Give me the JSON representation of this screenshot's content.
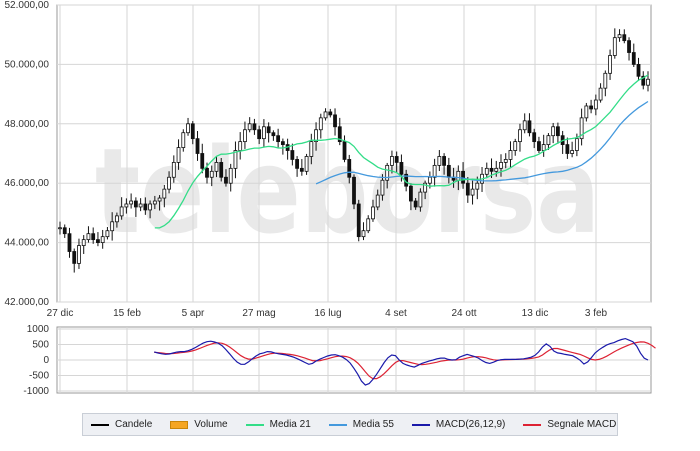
{
  "chart_data": [
    {
      "type": "candlestick",
      "y_ticks": [
        "52.000,00",
        "50.000,00",
        "48.000,00",
        "46.000,00",
        "44.000,00",
        "42.000,00"
      ],
      "ylim": [
        42000,
        52000
      ],
      "x_ticks": [
        "27 dic",
        "15 feb",
        "5 apr",
        "27 mag",
        "16 lug",
        "4 set",
        "24 ott",
        "13 dic",
        "3 feb"
      ],
      "grid": true,
      "close": [
        44500,
        44300,
        43700,
        43300,
        43900,
        44100,
        44300,
        44100,
        44000,
        44200,
        44400,
        44700,
        44900,
        45200,
        45300,
        45400,
        45200,
        45300,
        45100,
        45300,
        45400,
        45500,
        45800,
        46200,
        46700,
        47200,
        47700,
        48000,
        47500,
        47000,
        46500,
        46200,
        46400,
        46700,
        46200,
        46000,
        46500,
        47100,
        47400,
        47800,
        48000,
        47800,
        47500,
        47900,
        47700,
        47600,
        47400,
        47300,
        47100,
        46800,
        46500,
        46400,
        46900,
        47400,
        47800,
        48200,
        48400,
        48300,
        47900,
        47400,
        46800,
        46200,
        45300,
        44200,
        44400,
        44800,
        45200,
        45600,
        46100,
        46600,
        46900,
        46700,
        46300,
        45900,
        45400,
        45200,
        45700,
        46000,
        46200,
        46600,
        46900,
        46600,
        46200,
        46100,
        46400,
        46000,
        45600,
        45800,
        46000,
        46300,
        46500,
        46400,
        46500,
        46700,
        46800,
        47100,
        47400,
        47800,
        48100,
        47700,
        47400,
        47100,
        47300,
        47600,
        47900,
        47600,
        47300,
        47000,
        47100,
        47500,
        48200,
        48600,
        48500,
        48800,
        49200,
        49700,
        50300,
        50900,
        51000,
        50800,
        50400,
        50000,
        49600,
        49300,
        49500
      ],
      "media_21": [
        null,
        null,
        null,
        null,
        null,
        null,
        null,
        null,
        null,
        null,
        null,
        null,
        null,
        null,
        null,
        null,
        null,
        null,
        null,
        null,
        44495,
        44500,
        44571,
        44700,
        44905,
        45148,
        45424,
        45738,
        46014,
        46229,
        46410,
        46571,
        46748,
        46905,
        46976,
        46981,
        47005,
        47048,
        47081,
        47110,
        47152,
        47181,
        47181,
        47214,
        47238,
        47224,
        47185,
        47186,
        47219,
        47271,
        47324,
        47343,
        47386,
        47448,
        47443,
        47443,
        47457,
        47481,
        47505,
        47481,
        47429,
        47367,
        47238,
        47038,
        46867,
        46757,
        46652,
        46538,
        46476,
        46443,
        46410,
        46357,
        46229,
        46033,
        45967,
        45957,
        45957,
        45938,
        45900,
        45910,
        45919,
        45914,
        45929,
        46023,
        46095,
        46114,
        46129,
        46138,
        46129,
        46143,
        46190,
        46271,
        46329,
        46386,
        46433,
        46519,
        46624,
        46719,
        46810,
        46871,
        46914,
        46976,
        47076,
        47162,
        47267,
        47352,
        47433,
        47486,
        47505,
        47533,
        47619,
        47724,
        47805,
        47910,
        48067,
        48224,
        48390,
        48595,
        48800,
        49005,
        49186,
        49338,
        49467,
        49548,
        49648
      ],
      "media_55": [
        null,
        null,
        null,
        null,
        null,
        null,
        null,
        null,
        null,
        null,
        null,
        null,
        null,
        null,
        null,
        null,
        null,
        null,
        null,
        null,
        null,
        null,
        null,
        null,
        null,
        null,
        null,
        null,
        null,
        null,
        null,
        null,
        null,
        null,
        null,
        null,
        null,
        null,
        null,
        null,
        null,
        null,
        null,
        null,
        null,
        null,
        null,
        null,
        null,
        null,
        null,
        null,
        null,
        null,
        45975,
        46047,
        46122,
        46194,
        46255,
        46309,
        46349,
        46369,
        46367,
        46331,
        46290,
        46254,
        46224,
        46204,
        46194,
        46193,
        46209,
        46229,
        46238,
        46243,
        46231,
        46221,
        46223,
        46225,
        46219,
        46226,
        46229,
        46218,
        46207,
        46200,
        46190,
        46168,
        46138,
        46111,
        46094,
        46081,
        46076,
        46076,
        46084,
        46101,
        46112,
        46131,
        46147,
        46164,
        46181,
        46211,
        46249,
        46288,
        46322,
        46351,
        46371,
        46379,
        46399,
        46439,
        46484,
        46536,
        46608,
        46719,
        46841,
        46985,
        47147,
        47325,
        47525,
        47738,
        47950,
        48126,
        48279,
        48418,
        48543,
        48648,
        48752
      ]
    },
    {
      "type": "line",
      "y_ticks": [
        "1000",
        "500",
        "0",
        "-500",
        "-1000"
      ],
      "ylim": [
        -1000,
        1000
      ],
      "grid": true,
      "macd": [
        null,
        null,
        null,
        null,
        null,
        null,
        null,
        null,
        null,
        null,
        null,
        null,
        null,
        null,
        null,
        null,
        null,
        null,
        null,
        null,
        null,
        null,
        null,
        null,
        null,
        260,
        225,
        200,
        185,
        195,
        225,
        255,
        270,
        270,
        300,
        345,
        405,
        480,
        545,
        590,
        605,
        580,
        540,
        460,
        340,
        200,
        50,
        -70,
        -140,
        -140,
        -60,
        40,
        130,
        200,
        230,
        270,
        260,
        230,
        200,
        180,
        160,
        130,
        90,
        40,
        -20,
        -80,
        -140,
        -110,
        -30,
        30,
        80,
        130,
        160,
        170,
        140,
        90,
        10,
        -100,
        -270,
        -460,
        -680,
        -810,
        -760,
        -630,
        -460,
        -270,
        -80,
        70,
        160,
        140,
        0,
        -110,
        -160,
        -200,
        -230,
        -170,
        -110,
        -70,
        -30,
        0,
        40,
        60,
        60,
        20,
        0,
        10,
        90,
        140,
        180,
        150,
        110,
        60,
        -20,
        -80,
        -110,
        -70,
        -20,
        10,
        20,
        20,
        20,
        20,
        30,
        40,
        60,
        90,
        150,
        260,
        420,
        520,
        440,
        290,
        230,
        210,
        180,
        160,
        140,
        70,
        -10,
        -130,
        -60,
        80,
        230,
        330,
        410,
        480,
        530,
        560,
        620,
        660,
        690,
        640,
        590,
        450,
        220,
        60,
        0
      ],
      "signal": [
        null,
        null,
        null,
        null,
        null,
        null,
        null,
        null,
        null,
        null,
        null,
        null,
        null,
        null,
        null,
        null,
        null,
        null,
        null,
        null,
        null,
        null,
        null,
        null,
        null,
        250,
        240,
        225,
        210,
        205,
        210,
        220,
        235,
        250,
        265,
        290,
        325,
        370,
        420,
        470,
        510,
        545,
        555,
        540,
        495,
        420,
        330,
        230,
        140,
        70,
        30,
        30,
        60,
        100,
        140,
        175,
        205,
        220,
        220,
        210,
        195,
        180,
        160,
        135,
        100,
        60,
        20,
        -20,
        -30,
        -20,
        10,
        40,
        75,
        105,
        125,
        125,
        110,
        70,
        0,
        -100,
        -230,
        -380,
        -520,
        -600,
        -600,
        -540,
        -440,
        -320,
        -190,
        -80,
        -20,
        -20,
        -50,
        -80,
        -110,
        -140,
        -150,
        -140,
        -120,
        -95,
        -70,
        -40,
        -20,
        -5,
        0,
        0,
        10,
        30,
        60,
        90,
        105,
        105,
        95,
        70,
        35,
        5,
        -5,
        0,
        5,
        10,
        15,
        20,
        25,
        30,
        40,
        50,
        70,
        100,
        160,
        250,
        330,
        370,
        370,
        340,
        305,
        270,
        240,
        210,
        180,
        130,
        70,
        20,
        0,
        20,
        60,
        120,
        190,
        260,
        325,
        385,
        440,
        490,
        535,
        565,
        585,
        580,
        540,
        470,
        380
      ]
    }
  ],
  "legend": {
    "items": [
      {
        "label": "Candele",
        "color": "#000000"
      },
      {
        "label": "Volume",
        "color": "#f5a623"
      },
      {
        "label": "Media 21",
        "color": "#33dd88"
      },
      {
        "label": "Media 55",
        "color": "#4499dd"
      },
      {
        "label": "MACD(26,12,9)",
        "color": "#1a1aaa"
      },
      {
        "label": "Segnale MACD",
        "color": "#dd2233"
      }
    ]
  },
  "watermark": "teleborsa"
}
